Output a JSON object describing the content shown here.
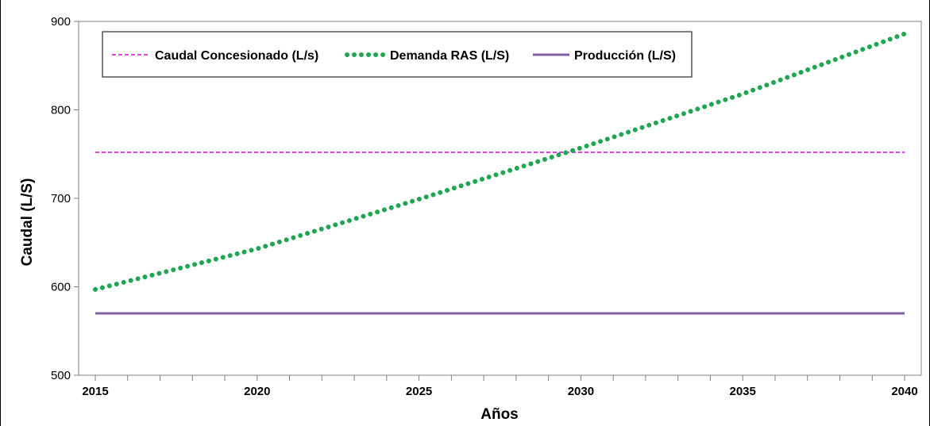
{
  "chart_data": {
    "type": "line",
    "title": "",
    "xlabel": "Años",
    "ylabel": "Caudal (L/S)",
    "xlim": [
      2015,
      2040
    ],
    "ylim": [
      500,
      900
    ],
    "yticks": [
      500,
      600,
      700,
      800,
      900
    ],
    "xticks": [
      2015,
      2020,
      2025,
      2030,
      2035,
      2040
    ],
    "grid": false,
    "legend_position": "top-left",
    "series": [
      {
        "name": "Caudal Concesionado (L/s)",
        "style": "dashed",
        "color": "#e040e0",
        "x": [
          2015,
          2040
        ],
        "y": [
          752,
          752
        ]
      },
      {
        "name": "Demanda RAS (L/S)",
        "style": "dotted",
        "color": "#1ea650",
        "x": [
          2015,
          2020,
          2025,
          2030,
          2035,
          2040
        ],
        "y": [
          597,
          643,
          699,
          757,
          818,
          886
        ]
      },
      {
        "name": "Producción (L/S)",
        "style": "solid",
        "color": "#7f5fa0",
        "x": [
          2015,
          2040
        ],
        "y": [
          570,
          570
        ]
      }
    ]
  }
}
